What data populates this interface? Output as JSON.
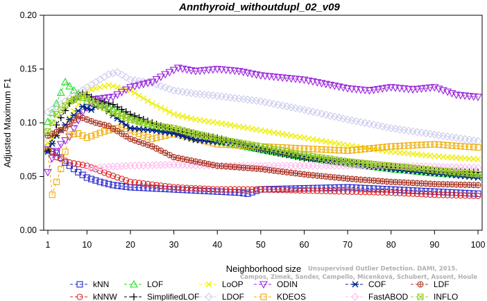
{
  "chart_data": {
    "type": "line",
    "title": "Annthyroid_withoutdupl_02_v09",
    "xlabel": "Neighborhood size",
    "ylabel": "Adjusted Maximum F1",
    "xlim": [
      1,
      100
    ],
    "ylim": [
      0,
      0.2
    ],
    "xticks": [
      "1",
      "10",
      "20",
      "30",
      "40",
      "50",
      "60",
      "70",
      "80",
      "90",
      "100"
    ],
    "yticks": [
      "0.00",
      "0.05",
      "0.10",
      "0.15",
      "0.20"
    ],
    "grid": false,
    "legend_position": "bottom",
    "credit": "Campos, Zimek, Sander, Campello, Micenková, Schubert, Assent, Houle",
    "credit_line1": "Unsupervised Outlier Detection. DAMI, 2015.",
    "series": [
      {
        "name": "kNN",
        "color": "#2222cc",
        "marker": "square",
        "dash": "4,3",
        "points": [
          [
            1,
            0.075
          ],
          [
            3,
            0.072
          ],
          [
            5,
            0.063
          ],
          [
            8,
            0.054
          ],
          [
            10,
            0.049
          ],
          [
            13,
            0.045
          ],
          [
            16,
            0.042
          ],
          [
            20,
            0.04
          ],
          [
            30,
            0.038
          ],
          [
            40,
            0.036
          ],
          [
            45,
            0.035
          ],
          [
            47,
            0.034
          ],
          [
            50,
            0.038
          ],
          [
            60,
            0.039
          ],
          [
            70,
            0.04
          ],
          [
            80,
            0.038
          ],
          [
            90,
            0.036
          ],
          [
            100,
            0.034
          ]
        ]
      },
      {
        "name": "kNNW",
        "color": "#dd2222",
        "marker": "circle",
        "dash": "4,3",
        "points": [
          [
            1,
            0.078
          ],
          [
            3,
            0.068
          ],
          [
            6,
            0.063
          ],
          [
            10,
            0.06
          ],
          [
            15,
            0.052
          ],
          [
            20,
            0.045
          ],
          [
            30,
            0.04
          ],
          [
            40,
            0.038
          ],
          [
            50,
            0.038
          ],
          [
            60,
            0.037
          ],
          [
            70,
            0.036
          ],
          [
            80,
            0.035
          ],
          [
            90,
            0.033
          ],
          [
            100,
            0.032
          ]
        ]
      },
      {
        "name": "LOF",
        "color": "#22dd22",
        "marker": "triangle-up",
        "dash": "4,3",
        "points": [
          [
            1,
            0.101
          ],
          [
            3,
            0.118
          ],
          [
            5,
            0.138
          ],
          [
            7,
            0.13
          ],
          [
            10,
            0.12
          ],
          [
            15,
            0.115
          ],
          [
            20,
            0.105
          ],
          [
            25,
            0.097
          ],
          [
            30,
            0.092
          ],
          [
            40,
            0.083
          ],
          [
            50,
            0.075
          ],
          [
            60,
            0.068
          ],
          [
            70,
            0.062
          ],
          [
            80,
            0.057
          ],
          [
            90,
            0.053
          ],
          [
            100,
            0.051
          ]
        ]
      },
      {
        "name": "SimplifiedLOF",
        "color": "#000000",
        "marker": "plus",
        "dash": "4,3",
        "points": [
          [
            1,
            0.074
          ],
          [
            3,
            0.098
          ],
          [
            6,
            0.118
          ],
          [
            9,
            0.128
          ],
          [
            12,
            0.122
          ],
          [
            16,
            0.117
          ],
          [
            20,
            0.108
          ],
          [
            25,
            0.1
          ],
          [
            30,
            0.093
          ],
          [
            40,
            0.086
          ],
          [
            50,
            0.075
          ],
          [
            60,
            0.067
          ],
          [
            70,
            0.063
          ],
          [
            80,
            0.059
          ],
          [
            90,
            0.055
          ],
          [
            100,
            0.054
          ]
        ]
      },
      {
        "name": "LoOP",
        "color": "#eeee00",
        "marker": "x",
        "dash": "4,3",
        "points": [
          [
            1,
            0.081
          ],
          [
            5,
            0.098
          ],
          [
            10,
            0.13
          ],
          [
            15,
            0.135
          ],
          [
            20,
            0.13
          ],
          [
            25,
            0.118
          ],
          [
            30,
            0.108
          ],
          [
            35,
            0.103
          ],
          [
            40,
            0.1
          ],
          [
            50,
            0.093
          ],
          [
            60,
            0.086
          ],
          [
            70,
            0.079
          ],
          [
            80,
            0.073
          ],
          [
            90,
            0.069
          ],
          [
            100,
            0.066
          ]
        ]
      },
      {
        "name": "LDOF",
        "color": "#ccccee",
        "marker": "diamond",
        "dash": "4,3",
        "points": [
          [
            1,
            0.11
          ],
          [
            5,
            0.12
          ],
          [
            10,
            0.133
          ],
          [
            15,
            0.145
          ],
          [
            17,
            0.147
          ],
          [
            20,
            0.14
          ],
          [
            25,
            0.137
          ],
          [
            30,
            0.13
          ],
          [
            35,
            0.127
          ],
          [
            40,
            0.125
          ],
          [
            50,
            0.12
          ],
          [
            60,
            0.112
          ],
          [
            70,
            0.103
          ],
          [
            80,
            0.095
          ],
          [
            90,
            0.089
          ],
          [
            100,
            0.083
          ]
        ]
      },
      {
        "name": "ODIN",
        "color": "#9922dd",
        "marker": "triangle-down",
        "dash": "4,3",
        "points": [
          [
            1,
            0.054
          ],
          [
            2,
            0.067
          ],
          [
            4,
            0.08
          ],
          [
            6,
            0.087
          ],
          [
            9,
            0.11
          ],
          [
            12,
            0.122
          ],
          [
            16,
            0.124
          ],
          [
            20,
            0.133
          ],
          [
            25,
            0.138
          ],
          [
            28,
            0.145
          ],
          [
            31,
            0.151
          ],
          [
            35,
            0.148
          ],
          [
            40,
            0.15
          ],
          [
            45,
            0.148
          ],
          [
            50,
            0.144
          ],
          [
            55,
            0.142
          ],
          [
            60,
            0.14
          ],
          [
            65,
            0.136
          ],
          [
            70,
            0.132
          ],
          [
            75,
            0.13
          ],
          [
            80,
            0.133
          ],
          [
            85,
            0.131
          ],
          [
            90,
            0.133
          ],
          [
            95,
            0.126
          ],
          [
            100,
            0.124
          ]
        ]
      },
      {
        "name": "KDEOS",
        "color": "#eeaa00",
        "marker": "square",
        "dash": "4,3",
        "points": [
          [
            1,
            0.074
          ],
          [
            2,
            0.033
          ],
          [
            4,
            0.057
          ],
          [
            6,
            0.089
          ],
          [
            8,
            0.09
          ],
          [
            10,
            0.086
          ],
          [
            14,
            0.092
          ],
          [
            18,
            0.096
          ],
          [
            22,
            0.09
          ],
          [
            25,
            0.085
          ],
          [
            30,
            0.09
          ],
          [
            40,
            0.08
          ],
          [
            50,
            0.078
          ],
          [
            60,
            0.076
          ],
          [
            70,
            0.074
          ],
          [
            80,
            0.078
          ],
          [
            90,
            0.08
          ],
          [
            100,
            0.077
          ]
        ]
      },
      {
        "name": "COF",
        "color": "#002288",
        "marker": "asterisk",
        "dash": "4,3",
        "points": [
          [
            1,
            0.073
          ],
          [
            3,
            0.088
          ],
          [
            6,
            0.103
          ],
          [
            9,
            0.115
          ],
          [
            11,
            0.112
          ],
          [
            13,
            0.118
          ],
          [
            16,
            0.107
          ],
          [
            20,
            0.095
          ],
          [
            25,
            0.093
          ],
          [
            30,
            0.09
          ],
          [
            35,
            0.084
          ],
          [
            40,
            0.082
          ],
          [
            45,
            0.081
          ],
          [
            50,
            0.076
          ],
          [
            60,
            0.068
          ],
          [
            70,
            0.062
          ],
          [
            80,
            0.057
          ],
          [
            90,
            0.053
          ],
          [
            100,
            0.049
          ]
        ]
      },
      {
        "name": "FastABOD",
        "color": "#ffbbee",
        "marker": "diamond",
        "dash": "4,3",
        "points": [
          [
            10,
            0.057
          ],
          [
            15,
            0.059
          ],
          [
            20,
            0.06
          ],
          [
            30,
            0.061
          ],
          [
            40,
            0.06
          ],
          [
            50,
            0.06
          ],
          [
            60,
            0.06
          ],
          [
            70,
            0.06
          ],
          [
            80,
            0.06
          ],
          [
            90,
            0.059
          ],
          [
            100,
            0.058
          ]
        ]
      },
      {
        "name": "LDF",
        "color": "#aa3322",
        "marker": "circle-plus",
        "dash": "4,3",
        "points": [
          [
            1,
            0.088
          ],
          [
            5,
            0.095
          ],
          [
            8,
            0.106
          ],
          [
            12,
            0.1
          ],
          [
            15,
            0.097
          ],
          [
            20,
            0.085
          ],
          [
            25,
            0.078
          ],
          [
            30,
            0.068
          ],
          [
            40,
            0.06
          ],
          [
            50,
            0.057
          ],
          [
            60,
            0.052
          ],
          [
            70,
            0.048
          ],
          [
            80,
            0.045
          ],
          [
            90,
            0.043
          ],
          [
            100,
            0.042
          ]
        ]
      },
      {
        "name": "INFLO",
        "color": "#99cc22",
        "marker": "box-x",
        "dash": "4,3",
        "points": [
          [
            1,
            0.092
          ],
          [
            3,
            0.108
          ],
          [
            6,
            0.12
          ],
          [
            9,
            0.125
          ],
          [
            12,
            0.118
          ],
          [
            16,
            0.11
          ],
          [
            20,
            0.103
          ],
          [
            25,
            0.098
          ],
          [
            30,
            0.095
          ],
          [
            35,
            0.09
          ],
          [
            40,
            0.085
          ],
          [
            50,
            0.078
          ],
          [
            60,
            0.07
          ],
          [
            70,
            0.064
          ],
          [
            80,
            0.06
          ],
          [
            90,
            0.056
          ],
          [
            100,
            0.052
          ]
        ]
      }
    ]
  }
}
